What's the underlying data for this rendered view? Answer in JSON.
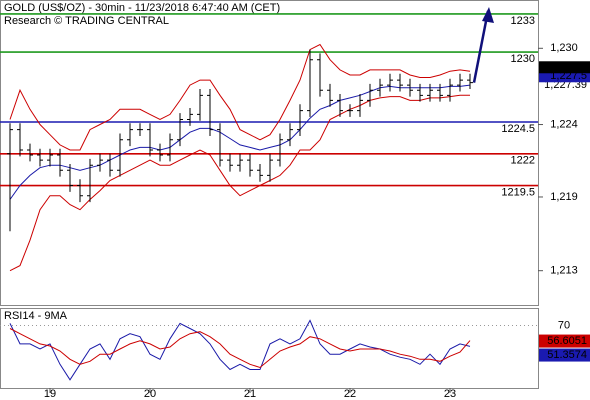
{
  "chart_data": {
    "type": "ohlc",
    "title": "GOLD (US$/OZ) - 30min - 11/23/2018 6:47:40 AM (CET)",
    "subtitle": "Research © TRADING CENTRAL",
    "x": [
      18.6,
      18.7,
      18.8,
      18.9,
      19.0,
      19.1,
      19.2,
      19.3,
      19.4,
      19.5,
      19.6,
      19.7,
      19.8,
      19.9,
      20.0,
      20.1,
      20.2,
      20.3,
      20.4,
      20.5,
      20.6,
      20.7,
      20.8,
      20.9,
      21.0,
      21.1,
      21.2,
      21.3,
      21.4,
      21.5,
      21.6,
      21.7,
      21.8,
      21.9,
      22.0,
      22.1,
      22.2,
      22.3,
      22.4,
      22.5,
      22.6,
      22.7,
      22.8,
      22.9,
      23.0,
      23.1,
      23.2
    ],
    "open": [
      1222.0,
      1223.9,
      1222.3,
      1221.9,
      1221.5,
      1221.9,
      1220.7,
      1219.5,
      1218.7,
      1221.1,
      1221.5,
      1220.7,
      1223.1,
      1223.9,
      1223.9,
      1222.3,
      1221.9,
      1223.1,
      1224.7,
      1225.1,
      1226.6,
      1223.9,
      1221.5,
      1221.1,
      1221.5,
      1220.7,
      1220.3,
      1221.5,
      1223.1,
      1223.9,
      1225.4,
      1229.4,
      1227.0,
      1226.2,
      1225.4,
      1225.4,
      1226.2,
      1227.0,
      1227.4,
      1227.8,
      1227.4,
      1227.0,
      1226.6,
      1227.0,
      1226.6,
      1227.4,
      1227.8
    ],
    "high": [
      1224.4,
      1224.4,
      1222.8,
      1222.4,
      1222.4,
      1222.4,
      1221.2,
      1220.0,
      1221.6,
      1222.0,
      1222.0,
      1223.6,
      1224.4,
      1224.4,
      1224.4,
      1222.8,
      1223.6,
      1225.2,
      1225.6,
      1227.1,
      1227.1,
      1224.4,
      1222.0,
      1222.0,
      1222.0,
      1221.2,
      1222.0,
      1223.6,
      1224.4,
      1225.9,
      1230.2,
      1229.9,
      1227.5,
      1226.7,
      1225.9,
      1226.7,
      1227.5,
      1227.9,
      1228.3,
      1228.3,
      1227.9,
      1227.5,
      1227.5,
      1227.5,
      1227.9,
      1228.3,
      1228.3
    ],
    "low": [
      1215.9,
      1221.8,
      1221.4,
      1221.0,
      1221.0,
      1220.2,
      1219.0,
      1218.2,
      1218.2,
      1220.6,
      1220.2,
      1220.2,
      1222.6,
      1223.4,
      1221.8,
      1221.4,
      1221.4,
      1222.6,
      1224.2,
      1224.6,
      1223.4,
      1221.0,
      1220.6,
      1220.6,
      1220.2,
      1219.8,
      1219.8,
      1221.0,
      1222.6,
      1223.4,
      1224.9,
      1226.5,
      1225.7,
      1224.9,
      1224.9,
      1224.9,
      1225.7,
      1226.5,
      1226.9,
      1226.9,
      1226.5,
      1226.1,
      1226.1,
      1226.1,
      1226.1,
      1226.9,
      1227.1
    ],
    "close": [
      1223.9,
      1222.3,
      1221.9,
      1221.5,
      1221.9,
      1220.7,
      1219.5,
      1218.7,
      1221.1,
      1221.5,
      1220.7,
      1223.1,
      1223.9,
      1223.9,
      1222.3,
      1221.9,
      1223.1,
      1224.7,
      1225.1,
      1226.6,
      1223.9,
      1221.5,
      1221.1,
      1221.5,
      1220.7,
      1220.3,
      1221.5,
      1223.1,
      1223.9,
      1225.4,
      1229.4,
      1227.0,
      1226.2,
      1225.4,
      1225.4,
      1226.2,
      1227.0,
      1227.4,
      1227.8,
      1227.4,
      1227.0,
      1226.6,
      1227.0,
      1226.6,
      1227.4,
      1227.8,
      1227.6
    ],
    "color": "#000000",
    "overlays": [
      {
        "color": "#cc0000",
        "values": [
          1224.7,
          1227.0,
          1225.5,
          1224.3,
          1223.5,
          1222.7,
          1222.3,
          1222.3,
          1223.9,
          1224.3,
          1224.7,
          1225.5,
          1225.5,
          1225.5,
          1225.1,
          1224.7,
          1225.1,
          1226.2,
          1227.4,
          1227.8,
          1227.8,
          1226.6,
          1225.5,
          1223.9,
          1223.5,
          1223.1,
          1223.5,
          1224.7,
          1226.2,
          1227.8,
          1230.2,
          1230.6,
          1229.4,
          1228.6,
          1228.2,
          1228.2,
          1228.6,
          1228.6,
          1228.6,
          1228.6,
          1228.2,
          1228.0,
          1228.0,
          1228.2,
          1228.5,
          1228.6,
          1228.5
        ]
      },
      {
        "color": "#cc0000",
        "values": [
          1212.8,
          1213.2,
          1215.2,
          1217.6,
          1218.7,
          1218.7,
          1218.0,
          1217.6,
          1218.4,
          1219.1,
          1219.9,
          1220.3,
          1220.7,
          1221.1,
          1221.5,
          1221.1,
          1221.1,
          1221.5,
          1221.9,
          1222.3,
          1221.9,
          1220.7,
          1219.5,
          1218.7,
          1219.1,
          1219.5,
          1219.9,
          1220.3,
          1221.1,
          1222.3,
          1222.3,
          1223.1,
          1224.7,
          1225.1,
          1225.5,
          1225.8,
          1226.2,
          1226.4,
          1226.5,
          1226.5,
          1226.2,
          1226.2,
          1226.4,
          1226.4,
          1226.5,
          1226.6,
          1226.6
        ]
      },
      {
        "color": "#1a1aa8",
        "values": [
          1218.4,
          1219.5,
          1220.3,
          1220.9,
          1221.1,
          1221.1,
          1220.9,
          1220.7,
          1220.9,
          1221.1,
          1221.5,
          1221.9,
          1222.3,
          1222.5,
          1222.5,
          1222.3,
          1222.5,
          1223.1,
          1223.7,
          1224.0,
          1224.0,
          1223.7,
          1223.2,
          1222.7,
          1222.5,
          1222.3,
          1222.5,
          1222.7,
          1223.1,
          1223.9,
          1224.8,
          1225.5,
          1225.8,
          1226.2,
          1226.4,
          1226.6,
          1226.9,
          1227.2,
          1227.3,
          1227.2,
          1227.2,
          1227.2,
          1227.2,
          1227.2,
          1227.3,
          1227.3,
          1227.4
        ]
      }
    ],
    "levels": [
      {
        "value": 1233,
        "color": "#1f9a1f"
      },
      {
        "value": 1230,
        "color": "#1f9a1f"
      },
      {
        "value": 1224.5,
        "color": "#1a1ab0"
      },
      {
        "value": 1222,
        "color": "#cc0000"
      },
      {
        "value": 1219.5,
        "color": "#cc0000"
      }
    ],
    "price_labels": [
      {
        "value": 1227.64,
        "label": "1,227.64",
        "color": "#000000"
      },
      {
        "value": 1227.5,
        "label": "1,227.5",
        "color": "#1a1ab0"
      },
      {
        "value": 1227.39,
        "label": "1,227.39",
        "color": "#cc0000"
      }
    ],
    "xlim": [
      18.5,
      23.88
    ],
    "xticks": [
      19,
      20,
      21,
      22,
      23
    ],
    "ylim": [
      1210.1,
      1234.1
    ],
    "yticks": [
      {
        "value": 1230.3,
        "label": "1,230"
      },
      {
        "value": 1224.3,
        "label": "1,224"
      },
      {
        "value": 1218.6,
        "label": "1,219"
      },
      {
        "value": 1212.8,
        "label": "1,213"
      }
    ],
    "rsi": {
      "title": "RSI14 - 9MA",
      "ylim": [
        14.5,
        85.5
      ],
      "yticks": [
        70
      ],
      "series": [
        {
          "color": "#1a1aa8",
          "values": [
            71.8,
            53.6,
            53.6,
            49.1,
            53.6,
            35.5,
            21.8,
            35.5,
            49.1,
            53.6,
            40.0,
            58.2,
            62.7,
            60.0,
            44.5,
            40.0,
            58.2,
            71.8,
            67.3,
            62.7,
            53.6,
            40.0,
            30.9,
            35.5,
            30.9,
            30.9,
            53.6,
            58.2,
            53.6,
            58.2,
            74.5,
            53.6,
            44.5,
            44.5,
            49.1,
            53.6,
            50.9,
            49.1,
            44.5,
            41.8,
            40.0,
            35.5,
            44.5,
            35.5,
            49.1,
            53.6,
            51.4
          ]
        },
        {
          "color": "#cc0000",
          "values": [
            67.3,
            62.7,
            58.2,
            53.6,
            51.8,
            47.3,
            40.0,
            35.5,
            38.2,
            44.5,
            44.5,
            49.1,
            53.6,
            56.4,
            53.6,
            49.1,
            50.9,
            58.2,
            62.7,
            64.5,
            60.0,
            53.6,
            44.5,
            40.0,
            35.5,
            32.7,
            40.0,
            47.3,
            50.9,
            53.6,
            60.0,
            58.2,
            53.6,
            49.1,
            47.3,
            49.1,
            49.1,
            49.1,
            47.3,
            44.5,
            42.7,
            40.0,
            40.0,
            38.2,
            42.7,
            46.4,
            56.6
          ]
        }
      ],
      "value_labels": [
        {
          "value": 56.6051,
          "label": "56.6051",
          "color": "#cc0000"
        },
        {
          "value": 51.3574,
          "label": "51.3574",
          "color": "#1a1ab0"
        }
      ]
    }
  }
}
